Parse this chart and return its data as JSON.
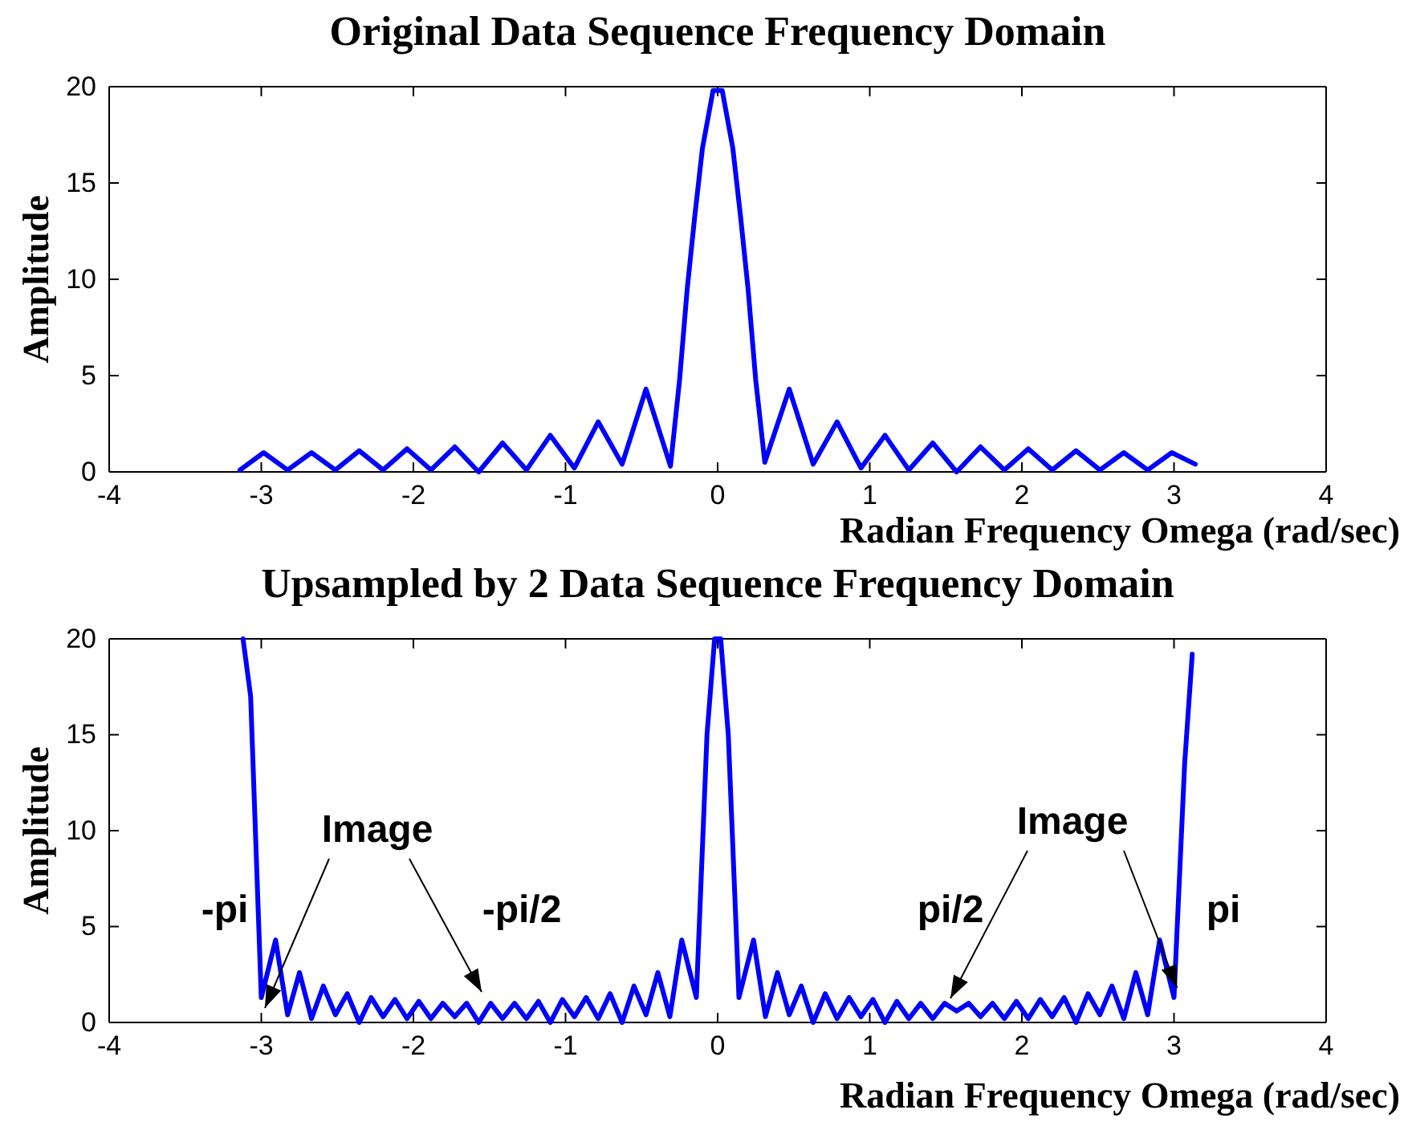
{
  "chart_data": [
    {
      "type": "line",
      "title": "Original Data Sequence Frequency Domain",
      "xlabel": "Radian Frequency Omega (rad/sec)",
      "ylabel": "Amplitude",
      "xlim": [
        -4,
        4
      ],
      "xticks": [
        -4,
        -3,
        -2,
        -1,
        0,
        1,
        2,
        3,
        4
      ],
      "ylim": [
        0,
        20
      ],
      "yticks": [
        0,
        5,
        10,
        15,
        20
      ],
      "x": [
        -3.14,
        -2.985,
        -2.827,
        -2.67,
        -2.513,
        -2.356,
        -2.199,
        -2.042,
        -1.885,
        -1.728,
        -1.571,
        -1.414,
        -1.257,
        -1.1,
        -0.942,
        -0.785,
        -0.628,
        -0.471,
        -0.31,
        -0.25,
        -0.2,
        -0.15,
        -0.1,
        -0.03,
        0.03,
        0.1,
        0.15,
        0.2,
        0.25,
        0.31,
        0.471,
        0.628,
        0.785,
        0.942,
        1.1,
        1.257,
        1.414,
        1.571,
        1.728,
        1.885,
        2.042,
        2.199,
        2.356,
        2.513,
        2.67,
        2.827,
        2.985,
        3.14
      ],
      "series": [
        {
          "color": "#0000ff",
          "values": [
            0.1,
            1.0,
            0.1,
            1.0,
            0.1,
            1.1,
            0.1,
            1.2,
            0.1,
            1.3,
            0,
            1.5,
            0.1,
            1.9,
            0.2,
            2.6,
            0.4,
            4.3,
            0.3,
            4.8,
            9.5,
            13.3,
            16.8,
            19.8,
            19.8,
            16.8,
            13.3,
            9.5,
            4.8,
            0.5,
            4.3,
            0.4,
            2.6,
            0.2,
            1.9,
            0.1,
            1.5,
            0,
            1.3,
            0.1,
            1.2,
            0.1,
            1.1,
            0.1,
            1.0,
            0.1,
            1.0,
            0.4
          ]
        }
      ]
    },
    {
      "type": "line",
      "title": "Upsampled by 2 Data Sequence Frequency Domain",
      "xlabel": "Radian Frequency Omega (rad/sec)",
      "ylabel": "Amplitude",
      "xlim": [
        -4,
        4
      ],
      "xticks": [
        -4,
        -3,
        -2,
        -1,
        0,
        1,
        2,
        3,
        4
      ],
      "ylim": [
        0,
        20
      ],
      "yticks": [
        0,
        5,
        10,
        15,
        20
      ],
      "x": [
        -3.12,
        -3.07,
        -3.0,
        -2.906,
        -2.827,
        -2.749,
        -2.67,
        -2.592,
        -2.513,
        -2.435,
        -2.356,
        -2.278,
        -2.199,
        -2.121,
        -2.042,
        -1.964,
        -1.885,
        -1.807,
        -1.728,
        -1.65,
        -1.571,
        -1.492,
        -1.414,
        -1.335,
        -1.257,
        -1.178,
        -1.1,
        -1.021,
        -0.942,
        -0.864,
        -0.785,
        -0.707,
        -0.628,
        -0.55,
        -0.471,
        -0.393,
        -0.314,
        -0.236,
        -0.14,
        -0.07,
        -0.02,
        0.02,
        0.07,
        0.14,
        0.236,
        0.314,
        0.393,
        0.471,
        0.55,
        0.628,
        0.707,
        0.785,
        0.864,
        0.942,
        1.021,
        1.1,
        1.178,
        1.257,
        1.335,
        1.414,
        1.492,
        1.571,
        1.65,
        1.728,
        1.807,
        1.885,
        1.964,
        2.042,
        2.121,
        2.199,
        2.278,
        2.356,
        2.435,
        2.513,
        2.592,
        2.67,
        2.749,
        2.827,
        2.906,
        3.0,
        3.07,
        3.12
      ],
      "series": [
        {
          "color": "#0000ff",
          "values": [
            20,
            17,
            1.3,
            4.3,
            0.4,
            2.6,
            0.2,
            1.9,
            0.4,
            1.5,
            0,
            1.3,
            0.3,
            1.2,
            0.2,
            1.1,
            0.2,
            1.0,
            0.3,
            1.0,
            0,
            1.0,
            0.2,
            1.0,
            0.2,
            1.1,
            0,
            1.2,
            0.3,
            1.3,
            0.2,
            1.5,
            0,
            1.9,
            0.4,
            2.6,
            0.3,
            4.3,
            1.3,
            15,
            20,
            20,
            15,
            1.3,
            4.3,
            0.3,
            2.6,
            0.4,
            1.9,
            0,
            1.5,
            0.2,
            1.3,
            0.3,
            1.2,
            0,
            1.1,
            0.2,
            1.0,
            0.2,
            1.0,
            0.6,
            1.0,
            0.3,
            1.0,
            0.2,
            1.1,
            0.2,
            1.2,
            0.3,
            1.3,
            0,
            1.5,
            0.4,
            1.9,
            0.2,
            2.6,
            0.4,
            4.3,
            1.3,
            13.5,
            19.2
          ]
        }
      ],
      "annotations": [
        "-pi",
        "Image",
        "-pi/2",
        "pi/2",
        {
          "text": "Image",
          "x": 3.02,
          "y": 1.8
        },
        "pi"
      ]
    }
  ]
}
